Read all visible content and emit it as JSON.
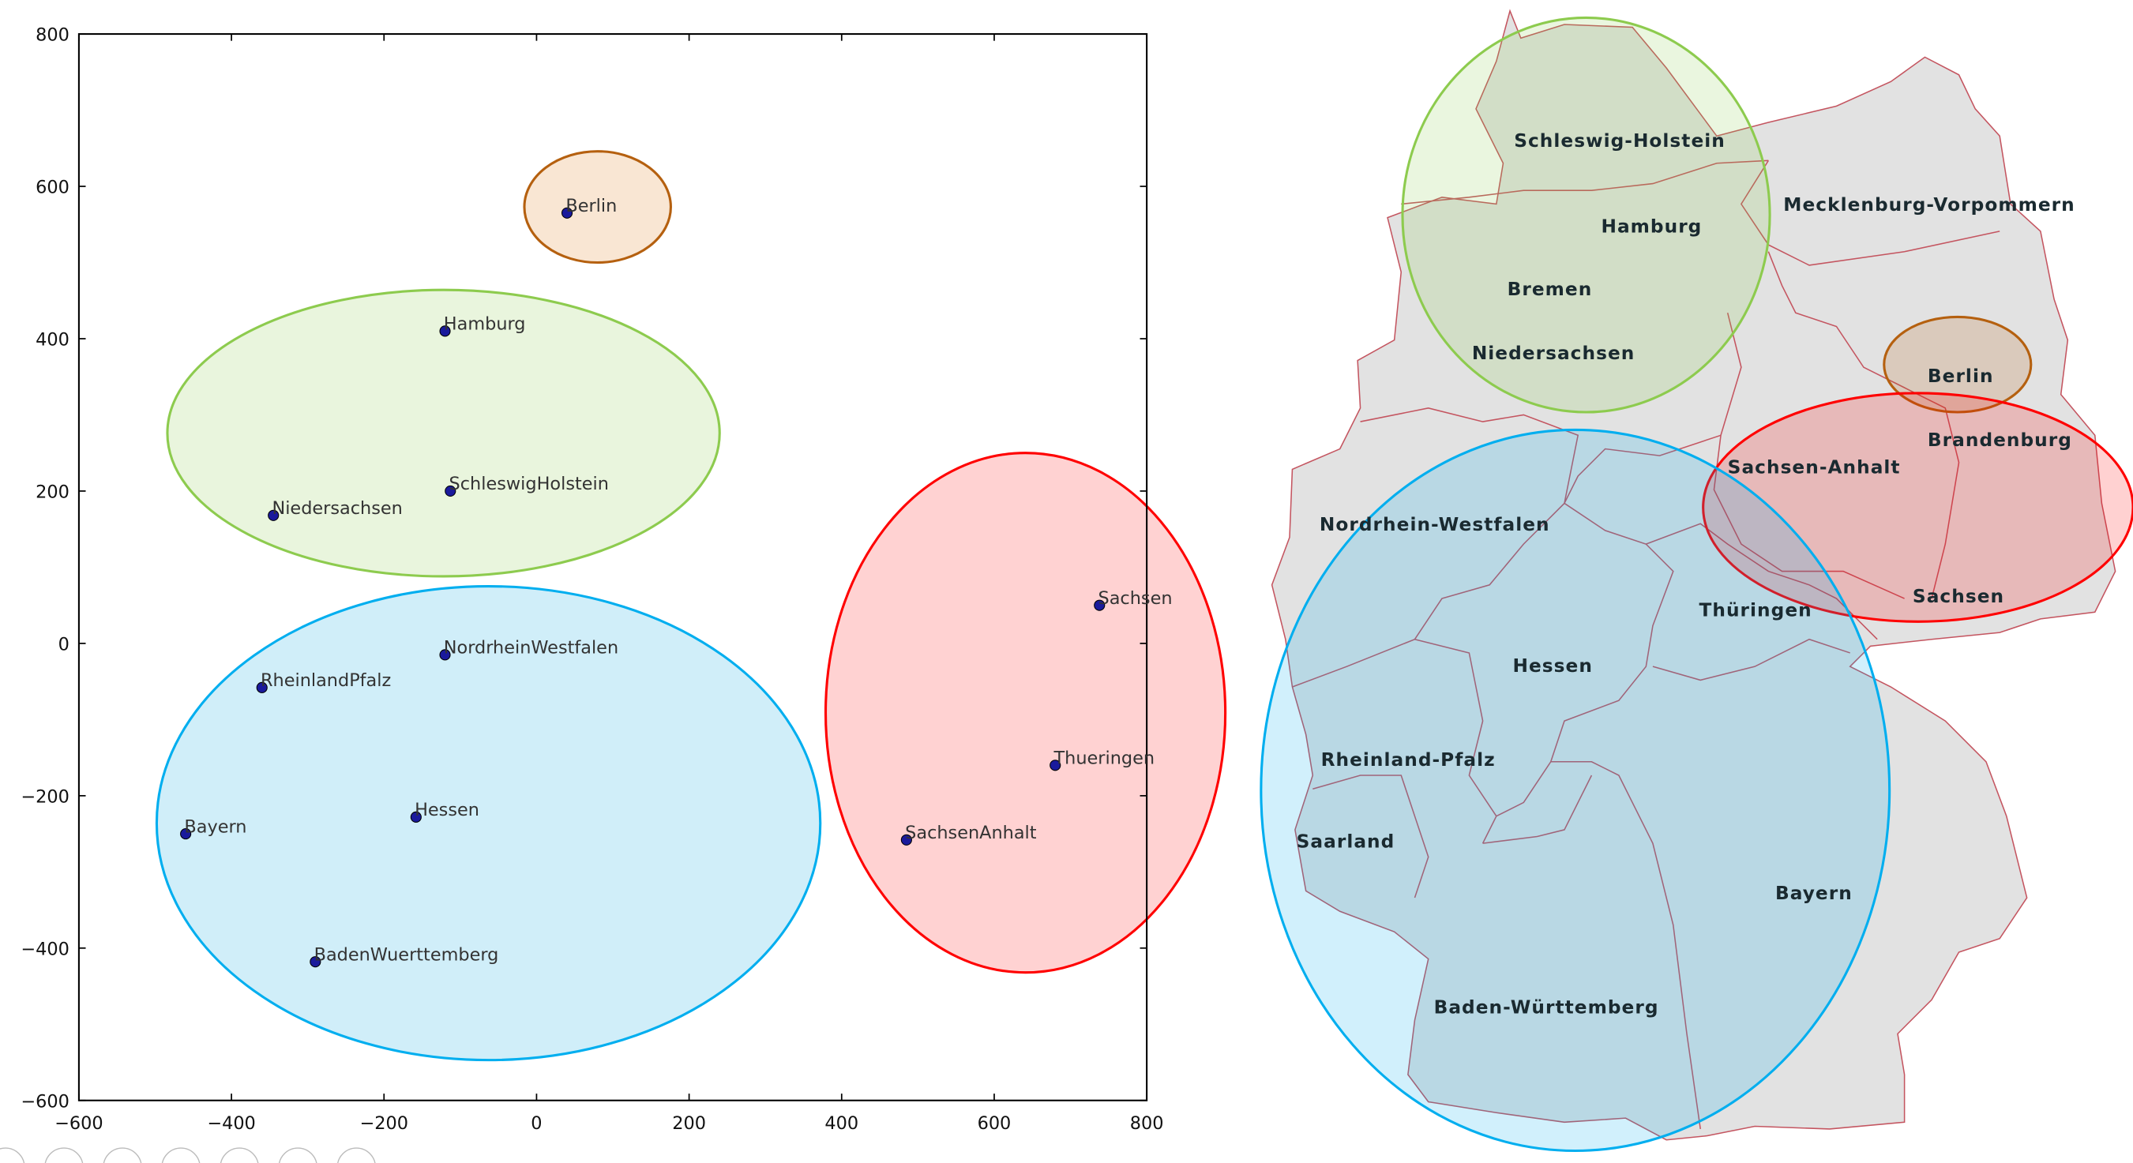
{
  "chart_data": {
    "type": "scatter",
    "title": "",
    "xlabel": "",
    "ylabel": "",
    "xlim": [
      -600,
      800
    ],
    "ylim": [
      -600,
      800
    ],
    "xticks": [
      "−600",
      "−400",
      "−200",
      "0",
      "200",
      "400",
      "600",
      "800"
    ],
    "yticks": [
      "−600",
      "−400",
      "−200",
      "0",
      "200",
      "400",
      "600",
      "800"
    ],
    "grid": false,
    "marker_color": "#1a1a9c",
    "points": [
      {
        "label": "Berlin",
        "x": 40,
        "y": 565
      },
      {
        "label": "Hamburg",
        "x": -120,
        "y": 410
      },
      {
        "label": "SchleswigHolstein",
        "x": -113,
        "y": 200
      },
      {
        "label": "Niedersachsen",
        "x": -345,
        "y": 168
      },
      {
        "label": "NordrheinWestfalen",
        "x": -120,
        "y": -15
      },
      {
        "label": "RheinlandPfalz",
        "x": -360,
        "y": -58
      },
      {
        "label": "Bayern",
        "x": -460,
        "y": -250
      },
      {
        "label": "Hessen",
        "x": -158,
        "y": -228
      },
      {
        "label": "BadenWuerttemberg",
        "x": -290,
        "y": -418
      },
      {
        "label": "Sachsen",
        "x": 738,
        "y": 50
      },
      {
        "label": "Thueringen",
        "x": 680,
        "y": -160
      },
      {
        "label": "SachsenAnhalt",
        "x": 485,
        "y": -258
      }
    ],
    "clusters": [
      {
        "color": "#b5600f",
        "fill": "#f9e6d3",
        "cx": 80,
        "cy": 573,
        "rx": 96,
        "ry": 73
      },
      {
        "color": "#8dcb4e",
        "fill": "#e9f5dd",
        "cx": -122,
        "cy": 276,
        "rx": 362,
        "ry": 188
      },
      {
        "color": "#00aeef",
        "fill": "#d0eef9",
        "cx": -63,
        "cy": -236,
        "rx": 435,
        "ry": 311
      },
      {
        "color": "#ff0000",
        "fill": "#ffd2d2",
        "cx": 641,
        "cy": -91,
        "rx": 262,
        "ry": 341
      }
    ]
  },
  "map": {
    "land_color": "#e2e2e2",
    "border_color": "#c45560",
    "labels": [
      "Schleswig-Holstein",
      "Hamburg",
      "Mecklenburg-Vorpommern",
      "Bremen",
      "Niedersachsen",
      "Berlin",
      "Brandenburg",
      "Sachsen-Anhalt",
      "Nordrhein-Westfalen",
      "Thüringen",
      "Sachsen",
      "Hessen",
      "Rheinland-Pfalz",
      "Saarland",
      "Bayern",
      "Baden-Württemberg"
    ]
  }
}
